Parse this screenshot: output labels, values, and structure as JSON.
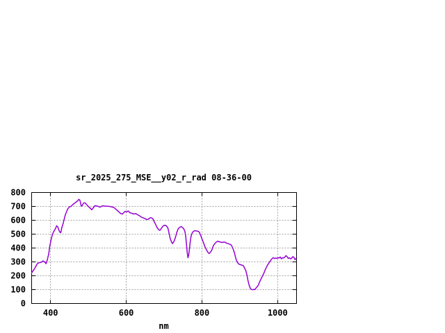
{
  "chart_data": {
    "type": "line",
    "title": "sr_2025_275_MSE__y02_r_rad 08-36-00",
    "xlabel": "nm",
    "ylabel": "",
    "xlim": [
      350,
      1050
    ],
    "ylim": [
      0,
      800
    ],
    "xticks": [
      400,
      600,
      800,
      1000
    ],
    "yticks": [
      0,
      100,
      200,
      300,
      400,
      500,
      600,
      700,
      800
    ],
    "grid": true,
    "legend": "none",
    "colors": {
      "line": "#9400d3",
      "grid": "#a0a0a0",
      "axis": "#000000",
      "text": "#000000",
      "background": "#ffffff"
    },
    "series": [
      {
        "x": [
          350,
          353,
          357,
          360,
          363,
          366,
          370,
          373,
          376,
          380,
          382,
          385,
          388,
          391,
          395,
          398,
          401,
          404,
          407,
          410,
          413,
          416,
          419,
          422,
          425,
          427,
          430,
          433,
          436,
          439,
          442,
          445,
          448,
          451,
          454,
          457,
          460,
          463,
          466,
          469,
          472,
          474,
          477,
          479,
          481,
          484,
          487,
          491,
          495,
          498,
          502,
          506,
          509,
          513,
          517,
          520,
          524,
          528,
          531,
          535,
          539,
          546,
          553,
          561,
          568,
          572,
          575,
          579,
          583,
          586,
          590,
          594,
          597,
          601,
          605,
          610,
          615,
          620,
          625,
          630,
          635,
          640,
          645,
          650,
          654,
          658,
          662,
          666,
          670,
          674,
          678,
          682,
          686,
          689,
          692,
          695,
          698,
          701,
          704,
          707,
          710,
          713,
          716,
          719,
          722,
          725,
          728,
          731,
          734,
          737,
          740,
          743,
          746,
          749,
          752,
          755,
          757,
          759,
          761,
          763,
          765,
          767,
          769,
          771,
          773,
          775,
          778,
          781,
          784,
          787,
          790,
          793,
          796,
          800,
          804,
          808,
          812,
          816,
          819,
          822,
          826,
          830,
          834,
          838,
          842,
          846,
          850,
          854,
          858,
          862,
          866,
          870,
          874,
          878,
          882,
          886,
          890,
          894,
          898,
          902,
          906,
          910,
          913,
          916,
          919,
          922,
          925,
          928,
          931,
          934,
          937,
          940,
          943,
          946,
          949,
          952,
          955,
          958,
          961,
          964,
          967,
          970,
          973,
          977,
          980,
          983,
          986,
          989,
          992,
          995,
          998,
          1001,
          1004,
          1007,
          1010,
          1013,
          1016,
          1019,
          1022,
          1025,
          1028,
          1031,
          1034,
          1037,
          1040,
          1043,
          1046,
          1049
        ],
        "y": [
          221,
          232,
          248,
          262,
          278,
          290,
          294,
          296,
          298,
          307,
          303,
          299,
          287,
          310,
          356,
          414,
          456,
          489,
          511,
          527,
          540,
          560,
          552,
          528,
          514,
          511,
          548,
          575,
          607,
          638,
          660,
          680,
          691,
          698,
          700,
          708,
          716,
          722,
          728,
          735,
          740,
          750,
          747,
          730,
          702,
          707,
          724,
          726,
          714,
          704,
          694,
          684,
          676,
          690,
          705,
          704,
          702,
          697,
          694,
          702,
          704,
          701,
          701,
          697,
          691,
          681,
          674,
          664,
          654,
          647,
          645,
          657,
          664,
          660,
          667,
          654,
          650,
          645,
          648,
          640,
          633,
          622,
          617,
          611,
          606,
          607,
          616,
          618,
          612,
          590,
          568,
          545,
          531,
          528,
          538,
          551,
          560,
          564,
          564,
          556,
          545,
          508,
          470,
          448,
          432,
          442,
          460,
          487,
          515,
          537,
          547,
          552,
          554,
          547,
          538,
          520,
          490,
          430,
          370,
          330,
          350,
          395,
          445,
          480,
          500,
          512,
          521,
          525,
          524,
          522,
          520,
          515,
          495,
          467,
          440,
          408,
          387,
          368,
          360,
          368,
          385,
          416,
          432,
          443,
          449,
          445,
          442,
          440,
          443,
          440,
          434,
          431,
          427,
          420,
          395,
          365,
          320,
          295,
          283,
          280,
          277,
          271,
          253,
          237,
          204,
          162,
          129,
          109,
          101,
          99,
          102,
          100,
          112,
          121,
          132,
          154,
          171,
          187,
          204,
          221,
          242,
          259,
          276,
          292,
          304,
          316,
          326,
          330,
          324,
          328,
          325,
          330,
          328,
          335,
          322,
          330,
          328,
          334,
          345,
          338,
          325,
          330,
          322,
          326,
          338,
          333,
          316,
          326
        ]
      }
    ]
  }
}
